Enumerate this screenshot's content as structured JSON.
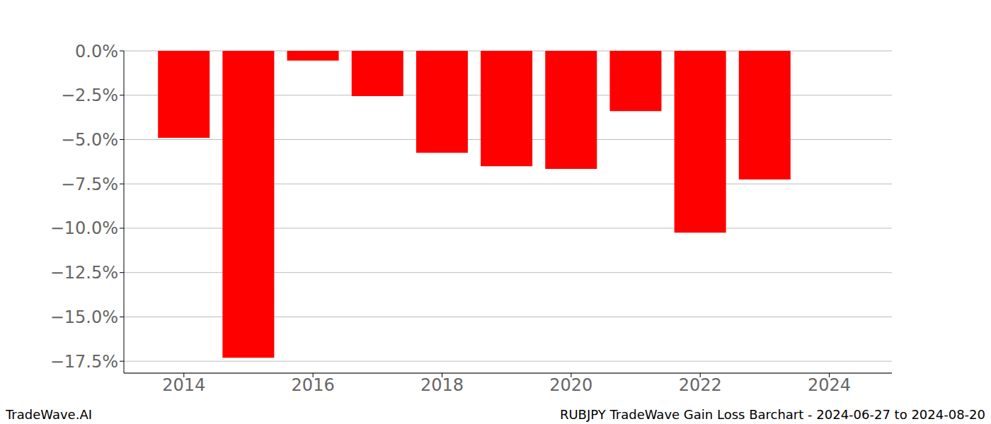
{
  "chart_data": {
    "type": "bar",
    "title": "RUBJPY TradeWave Gain Loss Barchart - 2024-06-27 to 2024-08-20",
    "annotations": [
      "TradeWave.AI"
    ],
    "x": [
      2014,
      2015,
      2016,
      2017,
      2018,
      2019,
      2020,
      2021,
      2022,
      2023
    ],
    "values": [
      -4.9,
      -17.3,
      -0.55,
      -2.55,
      -5.75,
      -6.5,
      -6.65,
      -3.4,
      -10.25,
      -7.25
    ],
    "color": "#ff0000",
    "xlim": [
      2013.07,
      2024.97
    ],
    "xticks": [
      2014,
      2016,
      2018,
      2020,
      2022,
      2024
    ],
    "ylim": [
      -18.17,
      0
    ],
    "yticks": [
      {
        "value": 0,
        "label": "0.0%"
      },
      {
        "value": -2.5,
        "label": "−2.5%"
      },
      {
        "value": -5,
        "label": "−5.0%"
      },
      {
        "value": -7.5,
        "label": "−7.5%"
      },
      {
        "value": -10,
        "label": "−10.0%"
      },
      {
        "value": -12.5,
        "label": "−12.5%"
      },
      {
        "value": -15,
        "label": "−15.0%"
      },
      {
        "value": -17.5,
        "label": "−17.5%"
      }
    ],
    "grid": true
  }
}
